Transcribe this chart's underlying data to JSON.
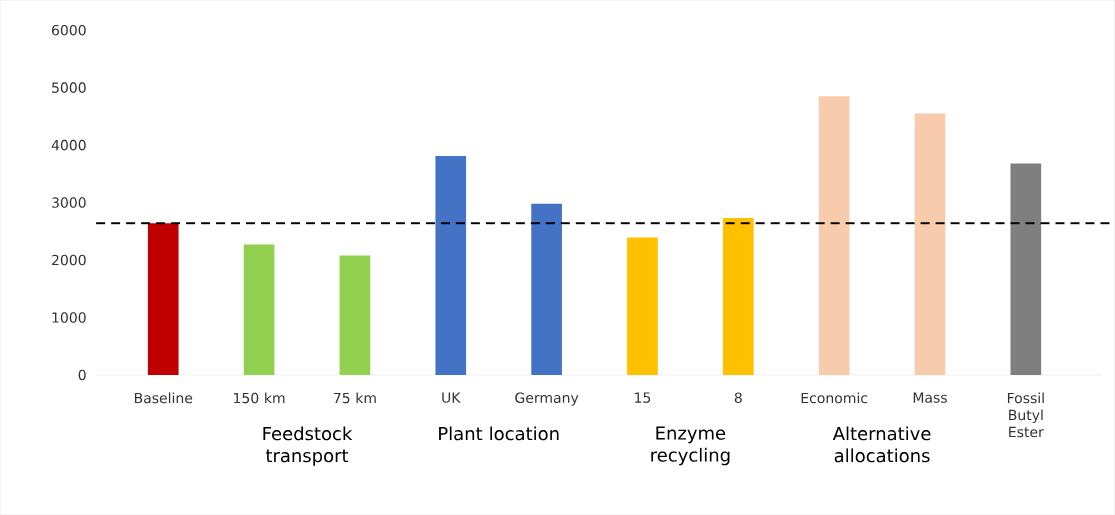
{
  "chart_data": {
    "type": "bar",
    "categories": [
      "Baseline",
      "150 km",
      "75 km",
      "UK",
      "Germany",
      "15",
      "8",
      "Economic",
      "Mass",
      "Fossil Butyl Ester"
    ],
    "values": [
      2640,
      2270,
      2080,
      3810,
      2980,
      2390,
      2730,
      4850,
      4550,
      3680
    ],
    "colors": [
      "#c00000",
      "#92d050",
      "#92d050",
      "#4472c4",
      "#4472c4",
      "#ffc000",
      "#ffc000",
      "#f8cbad",
      "#f8cbad",
      "#7f7f7f"
    ],
    "ylim": [
      0,
      6000
    ],
    "yticks": [
      0,
      1000,
      2000,
      3000,
      4000,
      5000,
      6000
    ],
    "ref_lines": [
      {
        "axis": "y",
        "value": 2640,
        "color": "#000000",
        "line_style": "dashed"
      }
    ],
    "annotations": [
      "Feedstock transport",
      "Plant location",
      "Enzyme recycling",
      "Alternative allocations"
    ]
  }
}
